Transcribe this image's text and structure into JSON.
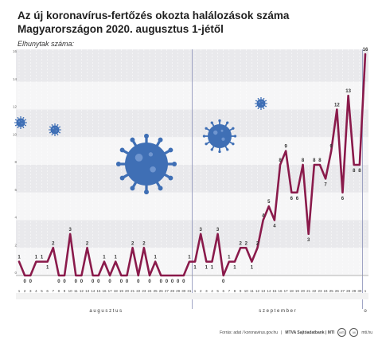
{
  "title": "Az új koronavírus-fertőzés okozta halálozások száma Magyarországon 2020. augusztus 1-jétől",
  "footer": {
    "source": "Forrás: adat / koronavirus.gov.hu",
    "credit": "MTVA Sajtóadatbank | MTI",
    "site": "mti.hu"
  },
  "colors": {
    "line": "#8a1a4b",
    "virus": "#3f6fb5",
    "band_dark": "#e9e9ec",
    "band_light": "#f6f6f7"
  },
  "chart_data": {
    "type": "line",
    "ylabel": "Elhunytak száma:",
    "ylim": [
      0,
      16
    ],
    "yticks": [
      0,
      2,
      4,
      6,
      8,
      10,
      12,
      14,
      16
    ],
    "month_labels": [
      "a u g u s z t u s",
      "s z e p t e m b e r",
      "o"
    ],
    "x": [
      "1",
      "2",
      "3",
      "4",
      "5",
      "6",
      "7",
      "8",
      "9",
      "10",
      "11",
      "12",
      "13",
      "14",
      "15",
      "16",
      "17",
      "18",
      "19",
      "20",
      "21",
      "22",
      "23",
      "24",
      "25",
      "26",
      "27",
      "28",
      "29",
      "30",
      "31",
      "1",
      "2",
      "3",
      "4",
      "5",
      "6",
      "7",
      "8",
      "9",
      "10",
      "11",
      "12",
      "13",
      "14",
      "15",
      "16",
      "17",
      "18",
      "19",
      "20",
      "21",
      "22",
      "23",
      "24",
      "25",
      "26",
      "27",
      "28",
      "29",
      "30",
      "1"
    ],
    "values": [
      1,
      0,
      0,
      1,
      1,
      1,
      2,
      0,
      0,
      3,
      0,
      0,
      2,
      0,
      0,
      1,
      0,
      1,
      0,
      0,
      2,
      0,
      2,
      0,
      1,
      0,
      0,
      0,
      0,
      0,
      1,
      1,
      3,
      1,
      1,
      3,
      0,
      1,
      1,
      2,
      2,
      1,
      2,
      4,
      5,
      4,
      8,
      9,
      6,
      6,
      8,
      3,
      8,
      8,
      7,
      9,
      12,
      6,
      13,
      8,
      8,
      16
    ],
    "value_labels": [
      "1",
      "0",
      "0",
      "1",
      "1",
      "1",
      "2",
      "0",
      "0",
      "3",
      "0",
      "0",
      "2",
      "0",
      "0",
      "1",
      "0",
      "1",
      "0",
      "0",
      "2",
      "0",
      "2",
      "0",
      "1",
      "0",
      "0",
      "0",
      "0",
      "0",
      "1",
      "1",
      "3",
      "1",
      "1",
      "3",
      "0",
      "1",
      "1",
      "2",
      "2",
      "1",
      "2",
      "4",
      "5",
      "4",
      "8",
      "9",
      "6",
      "6",
      "8",
      "3",
      "8",
      "8",
      "7",
      "9",
      "12",
      "6",
      "13",
      "8",
      "8",
      "16"
    ],
    "grid": true
  }
}
